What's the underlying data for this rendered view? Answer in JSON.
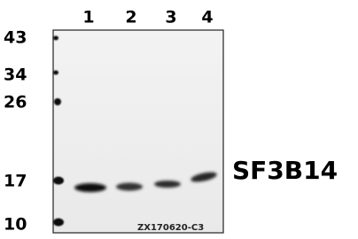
{
  "lanes": [
    "1",
    "2",
    "3",
    "4"
  ],
  "markers": [
    "43",
    "34",
    "26",
    "17",
    "10"
  ],
  "target": "SF3B14",
  "sample_code": "ZX170620-C3"
}
